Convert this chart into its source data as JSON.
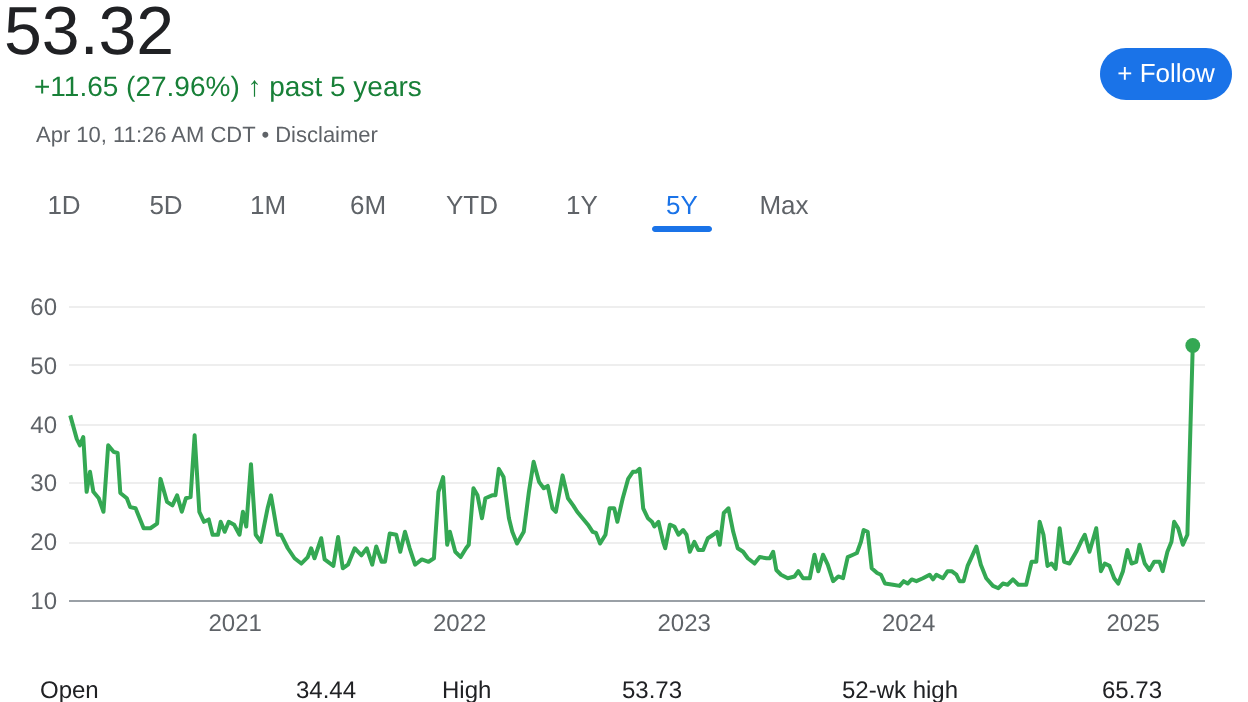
{
  "chart_data": {
    "type": "line",
    "title": "53.32",
    "subtitle": "+11.65 (27.96%) ↑ past 5 years",
    "annotations": [
      "Apr 10, 11:26 AM CDT • Disclaimer",
      "1D",
      "5D",
      "1M",
      "6M",
      "YTD",
      "1Y",
      "5Y",
      "Max",
      "+ Follow",
      "Open",
      "34.44",
      "High",
      "53.73",
      "52-wk high",
      "65.73"
    ],
    "xlim": [
      2020.26,
      2025.32
    ],
    "xticks": [
      2021,
      2022,
      2023,
      2024,
      2025
    ],
    "ylim": [
      10,
      60
    ],
    "yticks": [
      10,
      20,
      30,
      40,
      50,
      60
    ],
    "grid": "y",
    "marker": "none",
    "line_style": "solid",
    "series": [
      {
        "color": "#34a853",
        "x": [
          2020.27,
          2020.299,
          2020.313,
          2020.328,
          2020.343,
          2020.358,
          2020.373,
          2020.397,
          2020.418,
          2020.439,
          2020.463,
          2020.481,
          2020.493,
          2020.522,
          2020.537,
          2020.561,
          2020.597,
          2020.627,
          2020.657,
          2020.672,
          2020.701,
          2020.725,
          2020.746,
          2020.767,
          2020.785,
          2020.806,
          2020.824,
          2020.845,
          2020.866,
          2020.887,
          2020.904,
          2020.928,
          2020.94,
          2020.958,
          2020.976,
          2021.0,
          2021.024,
          2021.039,
          2021.054,
          2021.075,
          2021.096,
          2021.119,
          2021.149,
          2021.164,
          2021.194,
          2021.209,
          2021.239,
          2021.269,
          2021.299,
          2021.328,
          2021.343,
          2021.358,
          2021.388,
          2021.403,
          2021.442,
          2021.463,
          2021.484,
          2021.507,
          2021.537,
          2021.567,
          2021.591,
          2021.615,
          2021.633,
          2021.657,
          2021.672,
          2021.693,
          2021.722,
          2021.74,
          2021.761,
          2021.782,
          2021.806,
          2021.836,
          2021.866,
          2021.89,
          2021.91,
          2021.931,
          2021.949,
          2021.961,
          2021.985,
          2022.009,
          2022.033,
          2022.045,
          2022.066,
          2022.084,
          2022.104,
          2022.119,
          2022.149,
          2022.164,
          2022.179,
          2022.2,
          2022.224,
          2022.239,
          2022.26,
          2022.29,
          2022.313,
          2022.334,
          2022.358,
          2022.379,
          2022.397,
          2022.418,
          2022.433,
          2022.463,
          2022.487,
          2022.51,
          2022.528,
          2022.552,
          2022.576,
          2022.597,
          2022.612,
          2022.63,
          2022.654,
          2022.672,
          2022.693,
          2022.707,
          2022.731,
          2022.755,
          2022.776,
          2022.791,
          2022.806,
          2022.822,
          2022.843,
          2022.861,
          2022.872,
          2022.89,
          2022.911,
          2022.92,
          2022.941,
          2022.961,
          2022.979,
          2023.0,
          2023.015,
          2023.03,
          2023.05,
          2023.068,
          2023.089,
          2023.11,
          2023.134,
          2023.151,
          2023.163,
          2023.181,
          2023.202,
          2023.223,
          2023.243,
          2023.267,
          2023.288,
          2023.318,
          2023.341,
          2023.371,
          2023.386,
          2023.401,
          2023.415,
          2023.436,
          2023.466,
          2023.496,
          2023.513,
          2023.534,
          2023.564,
          2023.585,
          2023.602,
          2023.623,
          2023.644,
          2023.668,
          2023.691,
          2023.712,
          2023.733,
          2023.757,
          2023.774,
          2023.792,
          2023.804,
          2023.822,
          2023.84,
          2023.864,
          2023.881,
          2023.899,
          2023.935,
          2023.964,
          2023.982,
          2024.0,
          2024.018,
          2024.039,
          2024.068,
          2024.098,
          2024.113,
          2024.128,
          2024.157,
          2024.178,
          2024.196,
          2024.217,
          2024.231,
          2024.249,
          2024.267,
          2024.285,
          2024.306,
          2024.326,
          2024.35,
          2024.38,
          2024.404,
          2024.424,
          2024.445,
          2024.469,
          2024.493,
          2024.528,
          2024.552,
          2024.573,
          2024.588,
          2024.605,
          2024.623,
          2024.641,
          2024.659,
          2024.677,
          2024.697,
          2024.721,
          2024.751,
          2024.772,
          2024.789,
          2024.81,
          2024.84,
          2024.861,
          2024.878,
          2024.899,
          2024.92,
          2024.938,
          2024.959,
          2024.979,
          2024.997,
          2025.018,
          2025.033,
          2025.056,
          2025.077,
          2025.098,
          2025.122,
          2025.136,
          2025.157,
          2025.175,
          2025.187,
          2025.205,
          2025.226,
          2025.246,
          2025.27
        ],
        "values": [
          41.4,
          37.4,
          36.3,
          37.7,
          28.4,
          31.8,
          28.4,
          27.3,
          25,
          36.3,
          35.2,
          35,
          28.2,
          27.3,
          25.8,
          25.6,
          22.2,
          22.2,
          23,
          30.6,
          26.7,
          26.1,
          27.8,
          25,
          27.3,
          27.5,
          38,
          25,
          23.3,
          23.7,
          21.1,
          21.1,
          23.3,
          21.6,
          23.3,
          22.8,
          21.1,
          25,
          22.5,
          33.1,
          21.1,
          19.9,
          25.6,
          27.8,
          21.1,
          21.1,
          18.8,
          17.1,
          16.2,
          17.3,
          18.8,
          17.1,
          20.5,
          16.9,
          15.8,
          20.7,
          15.4,
          16,
          18.8,
          17.6,
          18.8,
          16,
          19.1,
          16.5,
          16.5,
          21.3,
          21.1,
          18.2,
          21.6,
          18.8,
          16,
          16.9,
          16.5,
          17.1,
          28.4,
          30.9,
          19.4,
          21.6,
          18.2,
          17.3,
          18.8,
          19.4,
          29,
          27.8,
          23.9,
          27.3,
          27.8,
          27.8,
          32.3,
          30.9,
          23.9,
          21.6,
          19.6,
          21.6,
          28.4,
          33.5,
          30.1,
          29,
          29.4,
          25.6,
          25,
          31.2,
          27.3,
          26.1,
          25,
          23.9,
          22.8,
          21.6,
          21.4,
          19.6,
          21.1,
          25.6,
          25.6,
          23.3,
          27.3,
          30.6,
          31.8,
          31.8,
          32.3,
          25.6,
          23.9,
          23.3,
          22.5,
          23.3,
          19.9,
          18.8,
          22.8,
          22.5,
          21.1,
          21.9,
          21.1,
          18.2,
          19.9,
          18.5,
          18.5,
          20.5,
          21.1,
          21.6,
          19.4,
          24.8,
          25.6,
          21.6,
          18.8,
          18.2,
          17.1,
          16.2,
          17.3,
          17.1,
          17.1,
          18.2,
          15.1,
          14.3,
          13.7,
          14,
          14.9,
          13.7,
          13.7,
          17.7,
          14.9,
          17.7,
          16,
          13.2,
          14,
          13.7,
          17.3,
          17.7,
          18,
          19.9,
          21.9,
          21.6,
          15.4,
          14.6,
          14.3,
          12.8,
          12.6,
          12.4,
          13.2,
          12.8,
          13.5,
          13.2,
          13.7,
          14.3,
          13.5,
          14.3,
          13.7,
          14.9,
          14.9,
          14.3,
          13.2,
          13.2,
          15.8,
          17.3,
          19.1,
          16,
          13.7,
          12.4,
          12,
          12.8,
          12.6,
          13.5,
          12.6,
          12.6,
          16.5,
          16.5,
          23.3,
          21.1,
          15.8,
          16.2,
          15.3,
          22.2,
          16.5,
          16.2,
          18.2,
          19.9,
          21.1,
          18.2,
          22.2,
          14.9,
          16.2,
          15.8,
          13.7,
          12.8,
          14.9,
          18.5,
          16.2,
          16.5,
          19.4,
          16.2,
          15.1,
          16.5,
          16.5,
          14.9,
          18.2,
          19.9,
          23.3,
          22.2,
          19.4,
          21.1,
          53.3
        ]
      },
      {
        "type": "scatter",
        "marker": "circle",
        "color": "#34a853",
        "x": [
          2025.27
        ],
        "values": [
          53.3
        ]
      }
    ]
  }
}
